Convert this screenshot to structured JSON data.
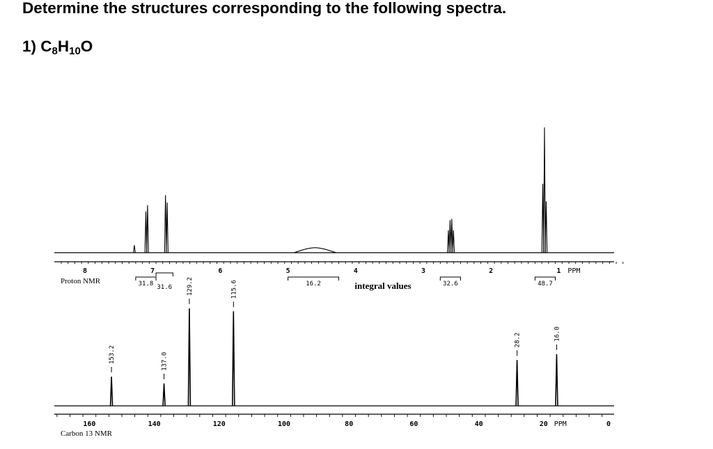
{
  "page": {
    "heading": "Determine the structures corresponding to the following spectra.",
    "problem": {
      "prefix": "1) ",
      "formula_parts": [
        {
          "text": "C",
          "sub": false
        },
        {
          "text": "8",
          "sub": true
        },
        {
          "text": "H",
          "sub": false
        },
        {
          "text": "10",
          "sub": true
        },
        {
          "text": "O",
          "sub": false
        }
      ]
    }
  },
  "chart_data": [
    {
      "type": "line",
      "label": "Proton NMR",
      "x_unit_label": "PPM",
      "xlim": [
        8.35,
        0.0
      ],
      "x_direction": "reversed",
      "x_ticks": [
        8,
        7,
        6,
        5,
        4,
        3,
        2,
        1
      ],
      "peaks": [
        {
          "ppm": 7.1,
          "rel_height": 0.33
        },
        {
          "ppm": 7.075,
          "rel_height": 0.38
        },
        {
          "ppm": 6.81,
          "rel_height": 0.46
        },
        {
          "ppm": 6.785,
          "rel_height": 0.4
        },
        {
          "ppm": 7.27,
          "rel_height": 0.06
        },
        {
          "ppm": 4.6,
          "rel_height": 0.04,
          "broad": true
        },
        {
          "ppm": 2.63,
          "rel_height": 0.18
        },
        {
          "ppm": 2.605,
          "rel_height": 0.26
        },
        {
          "ppm": 2.58,
          "rel_height": 0.27
        },
        {
          "ppm": 2.555,
          "rel_height": 0.18
        },
        {
          "ppm": 1.235,
          "rel_height": 0.55
        },
        {
          "ppm": 1.21,
          "rel_height": 1.0
        },
        {
          "ppm": 1.185,
          "rel_height": 0.41
        }
      ],
      "integrals": [
        {
          "ppm_from": 7.25,
          "ppm_to": 6.95,
          "value": "31.8"
        },
        {
          "ppm_from": 6.95,
          "ppm_to": 6.7,
          "value": "31.6"
        },
        {
          "ppm_from": 5.0,
          "ppm_to": 4.25,
          "value": "16.2"
        },
        {
          "ppm_from": 2.75,
          "ppm_to": 2.45,
          "value": "32.6"
        },
        {
          "ppm_from": 1.35,
          "ppm_to": 1.05,
          "value": "48.7"
        }
      ],
      "integral_note": "integral values"
    },
    {
      "type": "line",
      "label": "Carbon 13 NMR",
      "x_unit_label": "PPM",
      "xlim": [
        170,
        0
      ],
      "x_direction": "reversed",
      "x_ticks": [
        160,
        140,
        120,
        100,
        80,
        60,
        40,
        20,
        0
      ],
      "peaks": [
        {
          "ppm": 153.2,
          "rel_height": 0.3,
          "label": "153.2"
        },
        {
          "ppm": 137.0,
          "rel_height": 0.23,
          "label": "137.0"
        },
        {
          "ppm": 129.2,
          "rel_height": 1.0,
          "label": "129.2"
        },
        {
          "ppm": 115.6,
          "rel_height": 0.97,
          "label": "115.6"
        },
        {
          "ppm": 28.2,
          "rel_height": 0.47,
          "label": "28.2"
        },
        {
          "ppm": 16.0,
          "rel_height": 0.53,
          "label": "16.0"
        }
      ]
    }
  ]
}
